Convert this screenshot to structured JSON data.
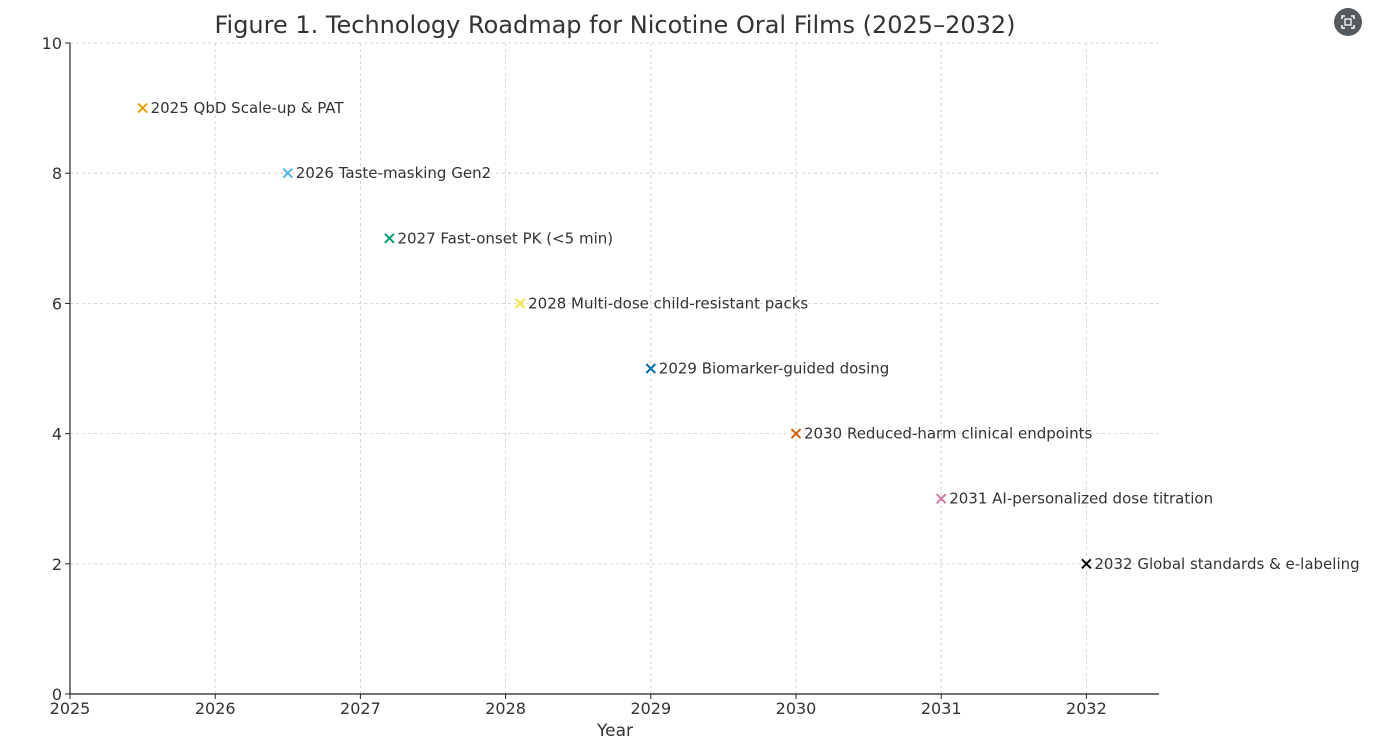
{
  "icons": {
    "expand": "expand-icon"
  },
  "chart_data": {
    "type": "scatter",
    "title": "Figure 1. Technology Roadmap for Nicotine Oral Films (2025–2032)",
    "xlabel": "Year",
    "ylabel": "",
    "xlim": [
      2025,
      2032.5
    ],
    "ylim": [
      0,
      10
    ],
    "xticks": [
      "2025",
      "2026",
      "2027",
      "2028",
      "2029",
      "2030",
      "2031",
      "2032"
    ],
    "yticks": [
      "0",
      "2",
      "4",
      "6",
      "8",
      "10"
    ],
    "grid": true,
    "marker": "x",
    "points": [
      {
        "x": 2025.5,
        "y": 9,
        "label": "2025 QbD Scale-up & PAT",
        "color": "#E69F00"
      },
      {
        "x": 2026.5,
        "y": 8,
        "label": "2026 Taste-masking Gen2",
        "color": "#56B4E9"
      },
      {
        "x": 2027.2,
        "y": 7,
        "label": "2027 Fast-onset PK (<5 min)",
        "color": "#009E73"
      },
      {
        "x": 2028.1,
        "y": 6,
        "label": "2028 Multi-dose child-resistant packs",
        "color": "#F0E442"
      },
      {
        "x": 2029,
        "y": 5,
        "label": "2029 Biomarker-guided dosing",
        "color": "#0072B2"
      },
      {
        "x": 2030,
        "y": 4,
        "label": "2030 Reduced-harm clinical endpoints",
        "color": "#D55E00"
      },
      {
        "x": 2031,
        "y": 3,
        "label": "2031 AI-personalized dose titration",
        "color": "#CC79A7"
      },
      {
        "x": 2032,
        "y": 2,
        "label": "2032 Global standards & e-labeling",
        "color": "#000000"
      }
    ]
  }
}
